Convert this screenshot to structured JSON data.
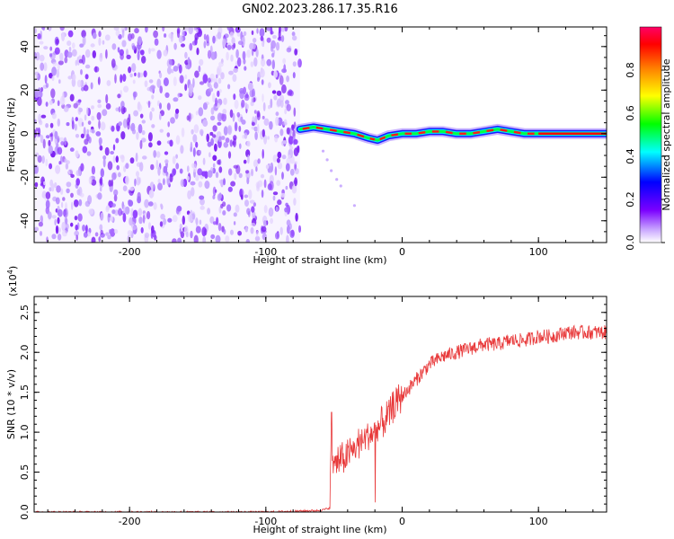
{
  "figure": {
    "title": "GN02.2023.286.17.35.R16"
  },
  "colors": {
    "snr_line": "#e8393a",
    "colormap": [
      "#ffffff",
      "#7b00ff",
      "#0000ff",
      "#00ffff",
      "#00ff00",
      "#ffff00",
      "#ff8800",
      "#ff0000",
      "#ff0066"
    ]
  },
  "chart_data": [
    {
      "type": "heatmap",
      "title": "GN02.2023.286.17.35.R16",
      "xlabel": "Height of straight line (km)",
      "ylabel": "Frequency (Hz)",
      "xlim": [
        -270,
        150
      ],
      "ylim": [
        -50,
        49
      ],
      "xticks": [
        -200,
        -100,
        0,
        100
      ],
      "yticks": [
        -40,
        -20,
        0,
        20,
        40
      ],
      "noise_region_x": [
        -270,
        -75
      ],
      "signal_track": [
        {
          "x": -75,
          "y": 2
        },
        {
          "x": -65,
          "y": 3
        },
        {
          "x": -55,
          "y": 2
        },
        {
          "x": -45,
          "y": 1
        },
        {
          "x": -35,
          "y": 0
        },
        {
          "x": -25,
          "y": -2
        },
        {
          "x": -18,
          "y": -3
        },
        {
          "x": -10,
          "y": -1
        },
        {
          "x": 0,
          "y": 0
        },
        {
          "x": 10,
          "y": 0
        },
        {
          "x": 20,
          "y": 1
        },
        {
          "x": 30,
          "y": 1
        },
        {
          "x": 40,
          "y": 0
        },
        {
          "x": 50,
          "y": 0
        },
        {
          "x": 60,
          "y": 1
        },
        {
          "x": 70,
          "y": 2
        },
        {
          "x": 80,
          "y": 1
        },
        {
          "x": 90,
          "y": 0
        },
        {
          "x": 100,
          "y": 0
        },
        {
          "x": 150,
          "y": 0
        }
      ],
      "colorbar": {
        "label": "Normalized spectral amplitude",
        "range": [
          0,
          1
        ],
        "ticks": [
          0.0,
          0.2,
          0.4,
          0.6,
          0.8
        ]
      }
    },
    {
      "type": "line",
      "xlabel": "Height of straight line (km)",
      "ylabel": "SNR (10 * v/v)",
      "exponent_label": "(x10",
      "exponent_power": "4",
      "exponent_close": ")",
      "xlim": [
        -270,
        150
      ],
      "ylim": [
        0,
        2.7
      ],
      "xticks": [
        -200,
        -100,
        0,
        100
      ],
      "yticks": [
        0.0,
        0.5,
        1.0,
        1.5,
        2.0,
        2.5
      ],
      "series": [
        {
          "x": [
            -270,
            -200,
            -150,
            -100,
            -60,
            -53,
            -52,
            -51,
            -50,
            -45,
            -40,
            -35,
            -30,
            -25,
            -20,
            -15,
            -10,
            -5,
            0,
            10,
            20,
            30,
            40,
            50,
            60,
            70,
            80,
            90,
            100,
            110,
            120,
            130,
            140,
            150
          ],
          "y": [
            0.0,
            0.0,
            0.0,
            0.0,
            0.02,
            0.05,
            1.25,
            0.6,
            0.6,
            0.65,
            0.7,
            0.8,
            0.9,
            0.95,
            1.0,
            1.1,
            1.2,
            1.35,
            1.45,
            1.65,
            1.85,
            1.95,
            2.0,
            2.05,
            2.1,
            2.1,
            2.15,
            2.15,
            2.2,
            2.2,
            2.25,
            2.25,
            2.25,
            2.25
          ]
        }
      ]
    }
  ]
}
